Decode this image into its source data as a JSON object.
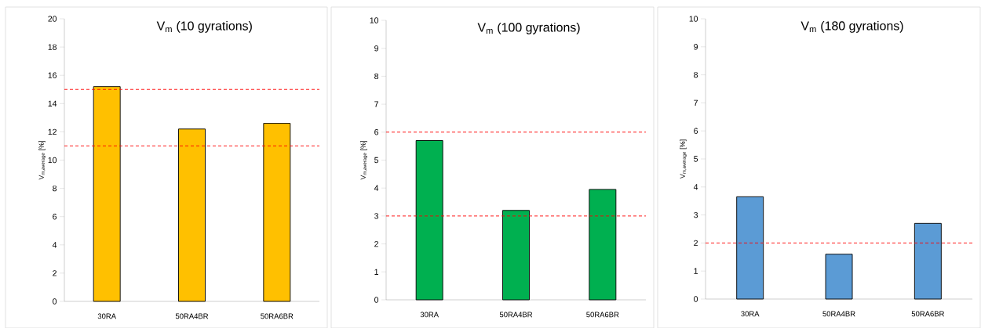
{
  "chart_data": [
    {
      "type": "bar",
      "title": "V$_{m}$ (10 gyrations)",
      "ylabel": "V$_{m,average}$ [%]",
      "categories": [
        "30RA",
        "50RA4BR",
        "50RA6BR"
      ],
      "values": [
        15.2,
        12.2,
        12.6
      ],
      "color": "#ffc000",
      "ylim": [
        0,
        20
      ],
      "yticks": [
        0,
        2,
        4,
        6,
        8,
        10,
        12,
        14,
        16,
        18,
        20
      ],
      "ref_lines": [
        {
          "axis": "y",
          "value": 15,
          "color": "#ff0000",
          "line_style": "dashed"
        },
        {
          "axis": "y",
          "value": 11,
          "color": "#ff0000",
          "line_style": "dashed"
        }
      ]
    },
    {
      "type": "bar",
      "title": "V$_{m}$ (100 gyrations)",
      "ylabel": "V$_{m,average}$ [%]",
      "categories": [
        "30RA",
        "50RA4BR",
        "50RA6BR"
      ],
      "values": [
        5.7,
        3.2,
        3.95
      ],
      "color": "#00b050",
      "ylim": [
        0,
        10
      ],
      "yticks": [
        0,
        1,
        2,
        3,
        4,
        5,
        6,
        7,
        8,
        9,
        10
      ],
      "ref_lines": [
        {
          "axis": "y",
          "value": 6,
          "color": "#ff0000",
          "line_style": "dashed"
        },
        {
          "axis": "y",
          "value": 3,
          "color": "#ff0000",
          "line_style": "dashed"
        }
      ]
    },
    {
      "type": "bar",
      "title": "V$_{m}$ (180 gyrations)",
      "ylabel": "V$_{m,average}$ [%]",
      "categories": [
        "30RA",
        "50RA4BR",
        "50RA6BR"
      ],
      "values": [
        3.65,
        1.6,
        2.7
      ],
      "color": "#5b9bd5",
      "ylim": [
        0,
        10
      ],
      "yticks": [
        0,
        1,
        2,
        3,
        4,
        5,
        6,
        7,
        8,
        9,
        10
      ],
      "ref_lines": [
        {
          "axis": "y",
          "value": 2,
          "color": "#ff0000",
          "line_style": "dashed"
        }
      ]
    }
  ]
}
